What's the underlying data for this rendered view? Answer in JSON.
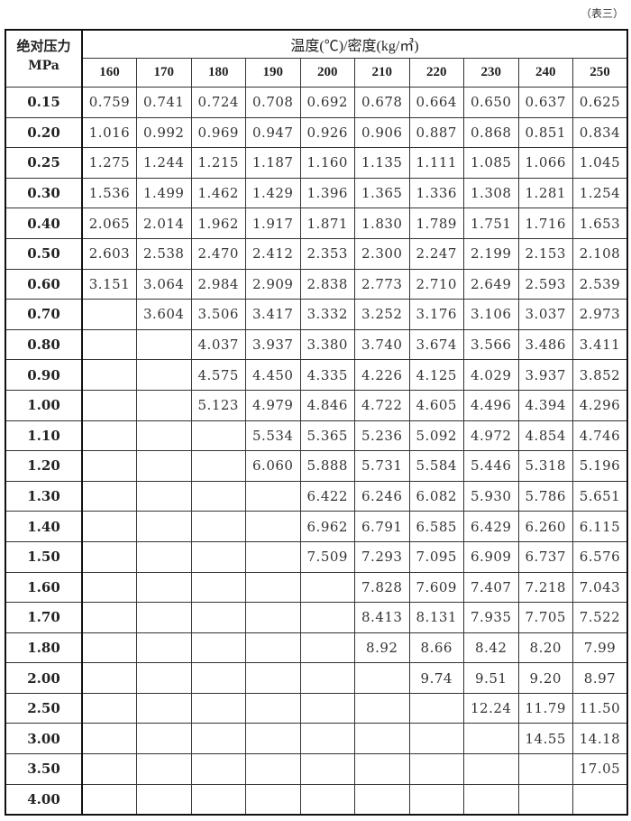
{
  "note": "（表三）",
  "header": {
    "corner_line1": "绝对压力",
    "corner_line2": "MPa",
    "title": "温度(℃)/密度(kg/㎥)",
    "temperatures": [
      "160",
      "170",
      "180",
      "190",
      "200",
      "210",
      "220",
      "230",
      "240",
      "250"
    ]
  },
  "rows": [
    {
      "pressure": "0.15",
      "values": [
        "0.759",
        "0.741",
        "0.724",
        "0.708",
        "0.692",
        "0.678",
        "0.664",
        "0.650",
        "0.637",
        "0.625"
      ]
    },
    {
      "pressure": "0.20",
      "values": [
        "1.016",
        "0.992",
        "0.969",
        "0.947",
        "0.926",
        "0.906",
        "0.887",
        "0.868",
        "0.851",
        "0.834"
      ]
    },
    {
      "pressure": "0.25",
      "values": [
        "1.275",
        "1.244",
        "1.215",
        "1.187",
        "1.160",
        "1.135",
        "1.111",
        "1.085",
        "1.066",
        "1.045"
      ]
    },
    {
      "pressure": "0.30",
      "values": [
        "1.536",
        "1.499",
        "1.462",
        "1.429",
        "1.396",
        "1.365",
        "1.336",
        "1.308",
        "1.281",
        "1.254"
      ]
    },
    {
      "pressure": "0.40",
      "values": [
        "2.065",
        "2.014",
        "1.962",
        "1.917",
        "1.871",
        "1.830",
        "1.789",
        "1.751",
        "1.716",
        "1.653"
      ]
    },
    {
      "pressure": "0.50",
      "values": [
        "2.603",
        "2.538",
        "2.470",
        "2.412",
        "2.353",
        "2.300",
        "2.247",
        "2.199",
        "2.153",
        "2.108"
      ]
    },
    {
      "pressure": "0.60",
      "values": [
        "3.151",
        "3.064",
        "2.984",
        "2.909",
        "2.838",
        "2.773",
        "2.710",
        "2.649",
        "2.593",
        "2.539"
      ]
    },
    {
      "pressure": "0.70",
      "values": [
        "",
        "3.604",
        "3.506",
        "3.417",
        "3.332",
        "3.252",
        "3.176",
        "3.106",
        "3.037",
        "2.973"
      ]
    },
    {
      "pressure": "0.80",
      "values": [
        "",
        "",
        "4.037",
        "3.937",
        "3.380",
        "3.740",
        "3.674",
        "3.566",
        "3.486",
        "3.411"
      ]
    },
    {
      "pressure": "0.90",
      "values": [
        "",
        "",
        "4.575",
        "4.450",
        "4.335",
        "4.226",
        "4.125",
        "4.029",
        "3.937",
        "3.852"
      ]
    },
    {
      "pressure": "1.00",
      "values": [
        "",
        "",
        "5.123",
        "4.979",
        "4.846",
        "4.722",
        "4.605",
        "4.496",
        "4.394",
        "4.296"
      ]
    },
    {
      "pressure": "1.10",
      "values": [
        "",
        "",
        "",
        "5.534",
        "5.365",
        "5.236",
        "5.092",
        "4.972",
        "4.854",
        "4.746"
      ]
    },
    {
      "pressure": "1.20",
      "values": [
        "",
        "",
        "",
        "6.060",
        "5.888",
        "5.731",
        "5.584",
        "5.446",
        "5.318",
        "5.196"
      ]
    },
    {
      "pressure": "1.30",
      "values": [
        "",
        "",
        "",
        "",
        "6.422",
        "6.246",
        "6.082",
        "5.930",
        "5.786",
        "5.651"
      ]
    },
    {
      "pressure": "1.40",
      "values": [
        "",
        "",
        "",
        "",
        "6.962",
        "6.791",
        "6.585",
        "6.429",
        "6.260",
        "6.115"
      ]
    },
    {
      "pressure": "1.50",
      "values": [
        "",
        "",
        "",
        "",
        "7.509",
        "7.293",
        "7.095",
        "6.909",
        "6.737",
        "6.576"
      ]
    },
    {
      "pressure": "1.60",
      "values": [
        "",
        "",
        "",
        "",
        "",
        "7.828",
        "7.609",
        "7.407",
        "7.218",
        "7.043"
      ]
    },
    {
      "pressure": "1.70",
      "values": [
        "",
        "",
        "",
        "",
        "",
        "8.413",
        "8.131",
        "7.935",
        "7.705",
        "7.522"
      ]
    },
    {
      "pressure": "1.80",
      "values": [
        "",
        "",
        "",
        "",
        "",
        "8.92",
        "8.66",
        "8.42",
        "8.20",
        "7.99"
      ]
    },
    {
      "pressure": "2.00",
      "values": [
        "",
        "",
        "",
        "",
        "",
        "",
        "9.74",
        "9.51",
        "9.20",
        "8.97"
      ]
    },
    {
      "pressure": "2.50",
      "values": [
        "",
        "",
        "",
        "",
        "",
        "",
        "",
        "12.24",
        "11.79",
        "11.50"
      ]
    },
    {
      "pressure": "3.00",
      "values": [
        "",
        "",
        "",
        "",
        "",
        "",
        "",
        "",
        "14.55",
        "14.18"
      ]
    },
    {
      "pressure": "3.50",
      "values": [
        "",
        "",
        "",
        "",
        "",
        "",
        "",
        "",
        "",
        "17.05"
      ]
    },
    {
      "pressure": "4.00",
      "values": [
        "",
        "",
        "",
        "",
        "",
        "",
        "",
        "",
        "",
        ""
      ]
    }
  ]
}
